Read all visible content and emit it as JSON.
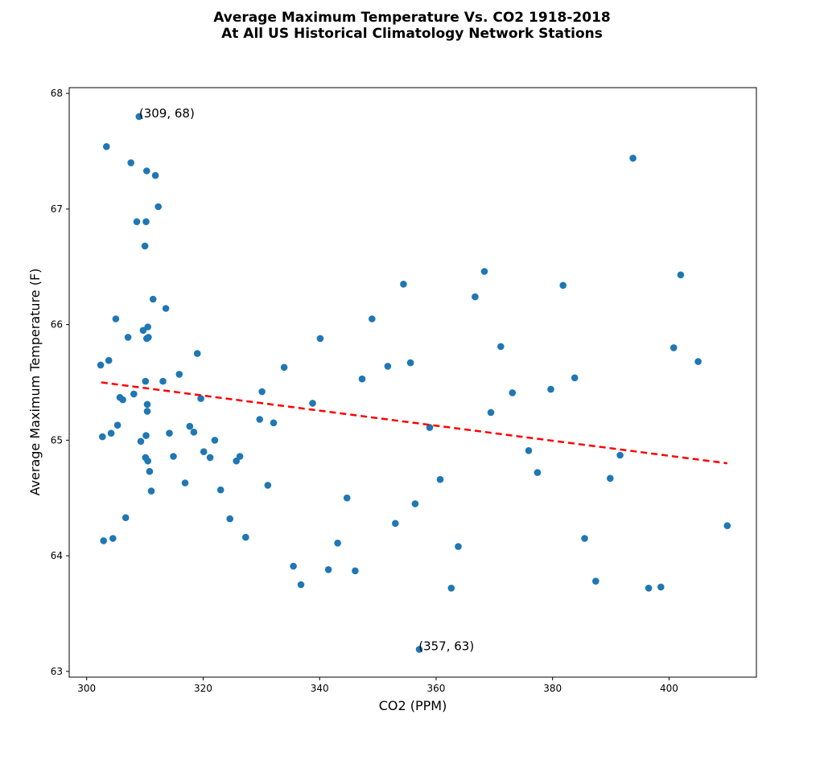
{
  "chart_data": {
    "type": "scatter",
    "title": "Average Maximum Temperature Vs. CO2 1918-2018",
    "subtitle": "At All US Historical Climatology Network Stations",
    "xlabel": "CO2 (PPM)",
    "ylabel": "Average Maximum Temperature (F)",
    "xlim": [
      297,
      415
    ],
    "ylim": [
      62.95,
      68.05
    ],
    "x_ticks": [
      300,
      320,
      340,
      360,
      380,
      400
    ],
    "y_ticks": [
      63,
      64,
      65,
      66,
      67,
      68
    ],
    "grid": false,
    "marker_color": "#1f77b4",
    "trend_color": "#ff0000",
    "trend_line": {
      "x": [
        302.5,
        410
      ],
      "y": [
        65.5,
        64.8
      ],
      "style": "dashed"
    },
    "annotations": [
      {
        "text": "(309, 68)",
        "x": 309,
        "y": 67.8
      },
      {
        "text": "(357, 63)",
        "x": 357,
        "y": 63.19
      }
    ],
    "points": [
      [
        302.4,
        65.65
      ],
      [
        302.7,
        65.03
      ],
      [
        302.9,
        64.13
      ],
      [
        303.4,
        67.54
      ],
      [
        303.8,
        65.69
      ],
      [
        304.2,
        65.06
      ],
      [
        304.5,
        64.15
      ],
      [
        305.0,
        66.05
      ],
      [
        305.3,
        65.13
      ],
      [
        305.7,
        65.37
      ],
      [
        306.2,
        65.35
      ],
      [
        306.7,
        64.33
      ],
      [
        307.1,
        65.89
      ],
      [
        307.6,
        67.4
      ],
      [
        308.1,
        65.4
      ],
      [
        308.6,
        66.89
      ],
      [
        309.0,
        67.8
      ],
      [
        309.3,
        64.99
      ],
      [
        309.7,
        65.95
      ],
      [
        310.0,
        66.68
      ],
      [
        310.1,
        65.51
      ],
      [
        310.1,
        64.85
      ],
      [
        310.2,
        66.89
      ],
      [
        310.2,
        65.04
      ],
      [
        310.3,
        65.88
      ],
      [
        310.3,
        67.33
      ],
      [
        310.4,
        65.31
      ],
      [
        310.4,
        65.25
      ],
      [
        310.5,
        65.98
      ],
      [
        310.5,
        64.82
      ],
      [
        310.6,
        65.89
      ],
      [
        310.8,
        64.73
      ],
      [
        311.1,
        64.56
      ],
      [
        311.4,
        66.22
      ],
      [
        311.8,
        67.29
      ],
      [
        312.3,
        67.02
      ],
      [
        313.1,
        65.51
      ],
      [
        313.6,
        66.14
      ],
      [
        314.2,
        65.06
      ],
      [
        314.9,
        64.86
      ],
      [
        315.9,
        65.57
      ],
      [
        316.9,
        64.63
      ],
      [
        317.7,
        65.12
      ],
      [
        318.4,
        65.07
      ],
      [
        319.0,
        65.75
      ],
      [
        319.6,
        65.36
      ],
      [
        320.1,
        64.9
      ],
      [
        321.2,
        64.85
      ],
      [
        322.0,
        65.0
      ],
      [
        323.0,
        64.57
      ],
      [
        324.6,
        64.32
      ],
      [
        325.7,
        64.82
      ],
      [
        326.3,
        64.86
      ],
      [
        327.3,
        64.16
      ],
      [
        329.7,
        65.18
      ],
      [
        330.1,
        65.42
      ],
      [
        331.1,
        64.61
      ],
      [
        332.1,
        65.15
      ],
      [
        333.9,
        65.63
      ],
      [
        335.5,
        63.91
      ],
      [
        336.8,
        63.75
      ],
      [
        338.8,
        65.32
      ],
      [
        340.1,
        65.88
      ],
      [
        341.5,
        63.88
      ],
      [
        343.1,
        64.11
      ],
      [
        344.7,
        64.5
      ],
      [
        346.1,
        63.87
      ],
      [
        347.3,
        65.53
      ],
      [
        349.0,
        66.05
      ],
      [
        351.7,
        65.64
      ],
      [
        353.0,
        64.28
      ],
      [
        354.4,
        66.35
      ],
      [
        355.6,
        65.67
      ],
      [
        356.4,
        64.45
      ],
      [
        357.1,
        63.19
      ],
      [
        358.9,
        65.11
      ],
      [
        360.7,
        64.66
      ],
      [
        362.6,
        63.72
      ],
      [
        363.8,
        64.08
      ],
      [
        366.7,
        66.24
      ],
      [
        368.3,
        66.46
      ],
      [
        369.4,
        65.24
      ],
      [
        371.1,
        65.81
      ],
      [
        373.1,
        65.41
      ],
      [
        375.9,
        64.91
      ],
      [
        377.4,
        64.72
      ],
      [
        379.7,
        65.44
      ],
      [
        381.8,
        66.34
      ],
      [
        383.8,
        65.54
      ],
      [
        385.5,
        64.15
      ],
      [
        387.4,
        63.78
      ],
      [
        389.9,
        64.67
      ],
      [
        391.6,
        64.87
      ],
      [
        393.8,
        67.44
      ],
      [
        396.5,
        63.72
      ],
      [
        398.6,
        63.73
      ],
      [
        400.8,
        65.8
      ],
      [
        402.0,
        66.43
      ],
      [
        405.0,
        65.68
      ],
      [
        410.0,
        64.26
      ]
    ]
  }
}
